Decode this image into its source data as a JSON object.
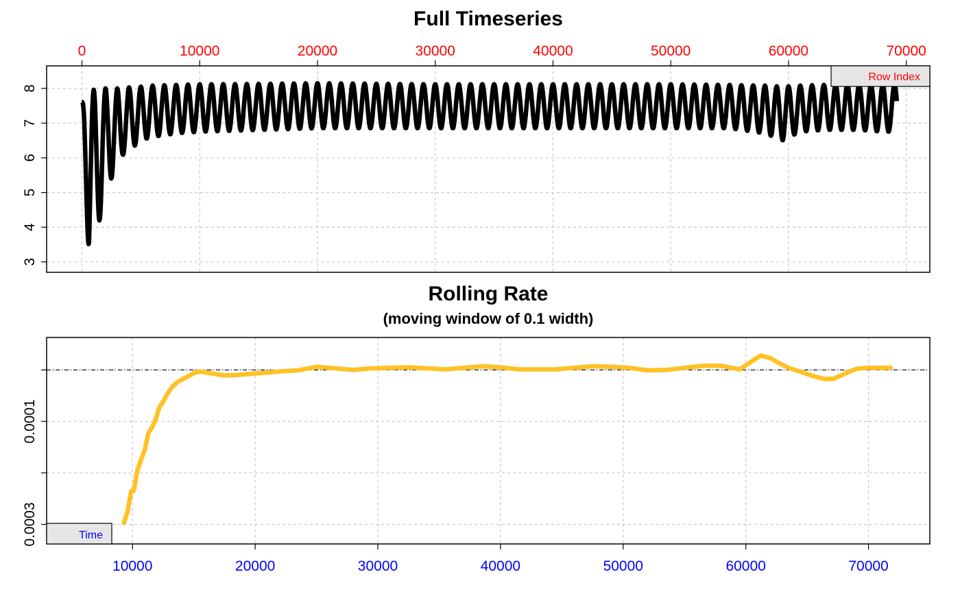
{
  "chart_data": [
    {
      "type": "line",
      "title": "Full Timeseries",
      "x_axis_position": "top",
      "x_tick_color": "#ff0000",
      "x_ticks": [
        "0",
        "10000",
        "20000",
        "30000",
        "40000",
        "50000",
        "60000",
        "70000"
      ],
      "y_ticks": [
        "3",
        "4",
        "5",
        "6",
        "7",
        "8"
      ],
      "xlim": [
        -3000,
        72000
      ],
      "ylim": [
        2.7,
        8.65
      ],
      "x_range": [
        0,
        69200
      ],
      "grid": true,
      "legend": {
        "label": "Row Index",
        "color": "#ff0000",
        "position": "top-right"
      },
      "series": [
        {
          "color": "#000000",
          "oscillation_period": 1000,
          "envelope": {
            "x": [
              0,
              300,
              600,
              900,
              1200,
              1600,
              2000,
              2500,
              3000,
              3500,
              4000,
              5000,
              6000,
              8000,
              10000,
              15000,
              20000,
              30000,
              40000,
              50000,
              55000,
              58000,
              59500,
              61000,
              63000,
              66000,
              68000,
              69200
            ],
            "max": [
              7.6,
              7.7,
              7.9,
              7.95,
              7.98,
              8.0,
              8.0,
              8.0,
              8.0,
              8.02,
              8.03,
              8.05,
              8.08,
              8.1,
              8.12,
              8.13,
              8.15,
              8.12,
              8.12,
              8.12,
              8.1,
              8.08,
              8.05,
              8.08,
              8.1,
              8.1,
              8.1,
              8.1
            ],
            "min": [
              7.2,
              5.0,
              3.1,
              3.9,
              3.9,
              4.3,
              5.2,
              5.4,
              5.6,
              6.1,
              6.2,
              6.5,
              6.6,
              6.7,
              6.75,
              6.8,
              6.85,
              6.85,
              6.85,
              6.85,
              6.85,
              6.7,
              6.5,
              6.75,
              6.8,
              6.8,
              6.75,
              6.75
            ]
          }
        }
      ]
    },
    {
      "type": "line",
      "title": "Rolling Rate",
      "subtitle": "(moving window of 0.1 width)",
      "x_axis_position": "bottom",
      "x_tick_color": "#0000ff",
      "x_ticks": [
        "10000",
        "20000",
        "30000",
        "40000",
        "50000",
        "60000",
        "70000"
      ],
      "y_ticks": [
        "0.0001",
        "0.0003"
      ],
      "y_ticks_unlabeled": [
        0.0,
        0.0002
      ],
      "y_reversed": true,
      "xlim": [
        3000,
        75000
      ],
      "ylim": [
        0.000338,
        -6.3e-05
      ],
      "grid": true,
      "reference_line": {
        "y": 0.0,
        "style": "dash-dot",
        "color": "#000000"
      },
      "legend": {
        "label": "Time",
        "color": "#0000ff",
        "position": "bottom-left"
      },
      "series": [
        {
          "color": "#ffc125",
          "x": [
            9300,
            9600,
            9900,
            10100,
            10400,
            10700,
            11000,
            11300,
            11600,
            11900,
            12200,
            12500,
            12800,
            13200,
            13600,
            14000,
            14500,
            15000,
            15500,
            16500,
            17500,
            18500,
            19500,
            20500,
            22000,
            23500,
            25000,
            26500,
            28000,
            29500,
            31000,
            32500,
            34000,
            35500,
            37000,
            38500,
            40000,
            41500,
            43000,
            44500,
            46000,
            47500,
            49000,
            50500,
            52000,
            53500,
            55000,
            56500,
            58000,
            59500,
            60500,
            61200,
            62000,
            62800,
            63500,
            64500,
            65500,
            66500,
            67200,
            68000,
            69000,
            70000,
            71000,
            71800
          ],
          "y": [
            0.000297,
            0.000275,
            0.000235,
            0.000235,
            0.000195,
            0.000175,
            0.000155,
            0.000122,
            0.000112,
            9.5e-05,
            7.2e-05,
            6.2e-05,
            4.8e-05,
            3.4e-05,
            2.5e-05,
            1.9e-05,
            1.3e-05,
            6e-06,
            3e-06,
            7e-06,
            1.1e-05,
            1e-05,
            8e-06,
            6e-06,
            3e-06,
            1e-06,
            -6e-06,
            -3e-06,
            0.0,
            -3e-06,
            -4e-06,
            -5e-06,
            -3e-06,
            -1e-06,
            -4e-06,
            -7e-06,
            -5e-06,
            -1e-06,
            -1e-06,
            -1e-06,
            -4e-06,
            -7e-06,
            -6e-06,
            -4e-06,
            1e-06,
            0.0,
            -4e-06,
            -8e-06,
            -8e-06,
            -1e-06,
            -1.7e-05,
            -2.8e-05,
            -2.3e-05,
            -1.2e-05,
            -4e-06,
            4e-06,
            1.2e-05,
            1.8e-05,
            1.7e-05,
            8e-06,
            -2e-06,
            -4e-06,
            -4e-06,
            -4e-06
          ]
        }
      ]
    }
  ]
}
